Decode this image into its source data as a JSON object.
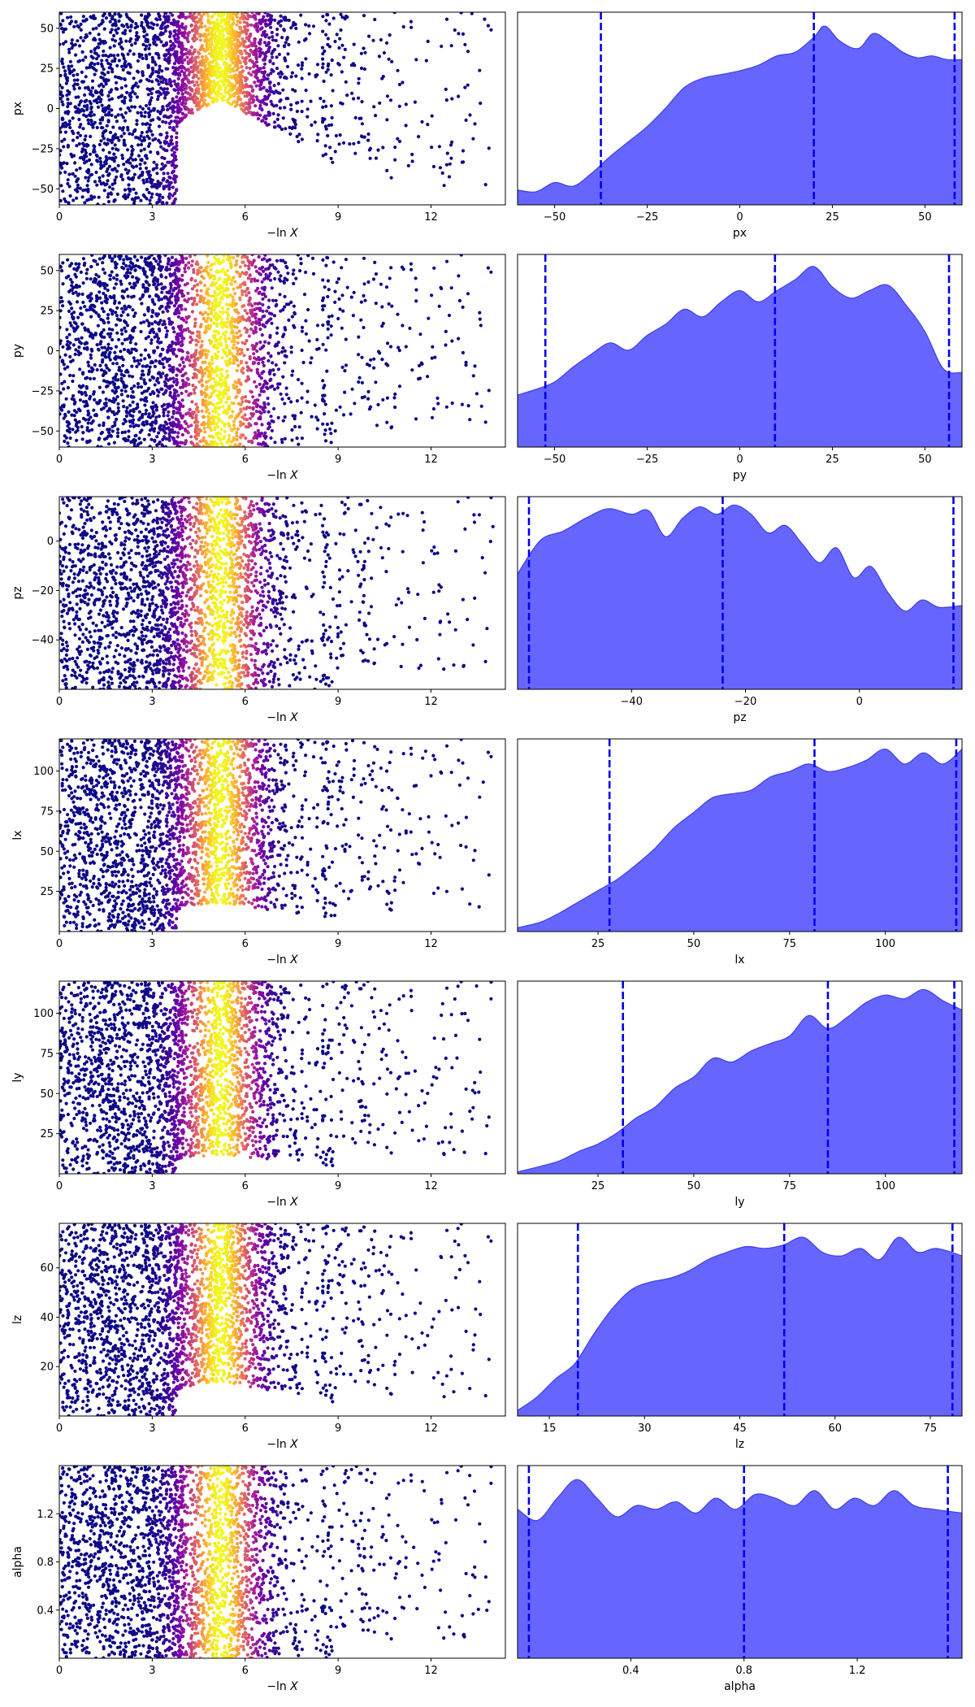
{
  "colors": {
    "kde_fill": "#6666ff",
    "kde_edge": "#3d3dea",
    "quantile_line": "#0000ee",
    "colormap": "plasma",
    "point_cold": "#0d0887"
  },
  "chart_data": [
    {
      "type": "scatter",
      "panel": "trace",
      "xlabel": "−ln X",
      "ylabel": "px",
      "xlim": [
        0,
        14.4
      ],
      "ylim": [
        -60,
        60
      ],
      "xticks": [
        0,
        3,
        6,
        9,
        12
      ],
      "xtick_labels": [
        "0",
        "3",
        "6",
        "9",
        "12"
      ],
      "yticks": [
        -50,
        -25,
        0,
        25,
        50
      ],
      "ytick_labels": [
        "−50",
        "−25",
        "0",
        "25",
        "50"
      ],
      "colormap": "plasma",
      "peak_x": 5.2,
      "n_points": 2800,
      "low_value_gap": 0.55
    },
    {
      "type": "area",
      "panel": "marginal",
      "xlabel": "px",
      "ylabel": "",
      "xlim": [
        -60,
        60
      ],
      "xticks": [
        -50,
        -25,
        0,
        25,
        50
      ],
      "xtick_labels": [
        "−50",
        "−25",
        "0",
        "25",
        "50"
      ],
      "x": [
        -60,
        -55,
        -50,
        -45,
        -40,
        -35,
        -30,
        -25,
        -20,
        -15,
        -10,
        -5,
        0,
        5,
        10,
        15,
        20,
        23,
        27,
        32,
        36,
        40,
        44,
        48,
        52,
        56,
        60
      ],
      "density": [
        0.08,
        0.07,
        0.12,
        0.1,
        0.17,
        0.26,
        0.34,
        0.42,
        0.52,
        0.63,
        0.68,
        0.7,
        0.72,
        0.75,
        0.8,
        0.82,
        0.9,
        0.96,
        0.88,
        0.84,
        0.92,
        0.88,
        0.82,
        0.79,
        0.8,
        0.78,
        0.78
      ],
      "quantiles": [
        -37.5,
        20,
        58
      ]
    },
    {
      "type": "scatter",
      "panel": "trace",
      "xlabel": "−ln X",
      "ylabel": "py",
      "xlim": [
        0,
        14.4
      ],
      "ylim": [
        -60,
        60
      ],
      "xticks": [
        0,
        3,
        6,
        9,
        12
      ],
      "xtick_labels": [
        "0",
        "3",
        "6",
        "9",
        "12"
      ],
      "yticks": [
        -50,
        -25,
        0,
        25,
        50
      ],
      "ytick_labels": [
        "−50",
        "−25",
        "0",
        "25",
        "50"
      ],
      "colormap": "plasma",
      "peak_x": 5.2,
      "n_points": 2800,
      "low_value_gap": 0.0
    },
    {
      "type": "area",
      "panel": "marginal",
      "xlabel": "py",
      "ylabel": "",
      "xlim": [
        -60,
        60
      ],
      "xticks": [
        -50,
        -25,
        0,
        25,
        50
      ],
      "xtick_labels": [
        "−50",
        "−25",
        "0",
        "25",
        "50"
      ],
      "x": [
        -60,
        -55,
        -50,
        -45,
        -40,
        -35,
        -30,
        -25,
        -20,
        -15,
        -10,
        -5,
        0,
        5,
        10,
        15,
        20,
        25,
        30,
        35,
        40,
        45,
        50,
        55,
        60
      ],
      "density": [
        0.28,
        0.31,
        0.35,
        0.43,
        0.5,
        0.56,
        0.52,
        0.6,
        0.66,
        0.74,
        0.7,
        0.78,
        0.84,
        0.78,
        0.84,
        0.9,
        0.97,
        0.86,
        0.8,
        0.84,
        0.87,
        0.76,
        0.62,
        0.42,
        0.4
      ],
      "quantiles": [
        -52.5,
        9.5,
        56.5
      ]
    },
    {
      "type": "scatter",
      "panel": "trace",
      "xlabel": "−ln X",
      "ylabel": "pz",
      "xlim": [
        0,
        14.4
      ],
      "ylim": [
        -60,
        18
      ],
      "xticks": [
        0,
        3,
        6,
        9,
        12
      ],
      "xtick_labels": [
        "0",
        "3",
        "6",
        "9",
        "12"
      ],
      "yticks": [
        -40,
        -20,
        0
      ],
      "ytick_labels": [
        "−40",
        "−20",
        "0"
      ],
      "colormap": "plasma",
      "peak_x": 5.2,
      "n_points": 2800,
      "low_value_gap": 0.0
    },
    {
      "type": "area",
      "panel": "marginal",
      "xlabel": "pz",
      "ylabel": "",
      "xlim": [
        -60,
        18
      ],
      "xticks": [
        -40,
        -20,
        0
      ],
      "xtick_labels": [
        "−40",
        "−20",
        "0"
      ],
      "x": [
        -60,
        -56,
        -52,
        -48,
        -44,
        -40,
        -37,
        -34,
        -31,
        -28,
        -25,
        -22,
        -19,
        -16,
        -13,
        -10,
        -7,
        -4,
        -1,
        2,
        5,
        8,
        11,
        14,
        18
      ],
      "density": [
        0.62,
        0.8,
        0.85,
        0.92,
        0.97,
        0.94,
        0.96,
        0.82,
        0.92,
        0.98,
        0.94,
        0.99,
        0.94,
        0.84,
        0.88,
        0.78,
        0.68,
        0.76,
        0.6,
        0.66,
        0.52,
        0.42,
        0.48,
        0.44,
        0.45
      ],
      "quantiles": [
        -58,
        -24,
        16.5
      ]
    },
    {
      "type": "scatter",
      "panel": "trace",
      "xlabel": "−ln X",
      "ylabel": "lx",
      "xlim": [
        0,
        14.4
      ],
      "ylim": [
        0,
        120
      ],
      "xticks": [
        0,
        3,
        6,
        9,
        12
      ],
      "xtick_labels": [
        "0",
        "3",
        "6",
        "9",
        "12"
      ],
      "yticks": [
        25,
        50,
        75,
        100
      ],
      "ytick_labels": [
        "25",
        "50",
        "75",
        "100"
      ],
      "colormap": "plasma",
      "peak_x": 5.2,
      "n_points": 2800,
      "low_value_gap": 0.15
    },
    {
      "type": "area",
      "panel": "marginal",
      "xlabel": "lx",
      "ylabel": "",
      "xlim": [
        4,
        120
      ],
      "xticks": [
        25,
        50,
        75,
        100
      ],
      "xtick_labels": [
        "25",
        "50",
        "75",
        "100"
      ],
      "x": [
        4,
        10,
        15,
        20,
        25,
        30,
        35,
        40,
        45,
        50,
        55,
        60,
        65,
        70,
        75,
        80,
        85,
        90,
        95,
        100,
        105,
        110,
        115,
        120
      ],
      "density": [
        0.02,
        0.05,
        0.1,
        0.16,
        0.22,
        0.28,
        0.36,
        0.45,
        0.56,
        0.64,
        0.72,
        0.74,
        0.76,
        0.83,
        0.86,
        0.9,
        0.86,
        0.88,
        0.92,
        0.98,
        0.9,
        0.96,
        0.9,
        0.98
      ],
      "quantiles": [
        28,
        81.5,
        118.5
      ]
    },
    {
      "type": "scatter",
      "panel": "trace",
      "xlabel": "−ln X",
      "ylabel": "ly",
      "xlim": [
        0,
        14.4
      ],
      "ylim": [
        0,
        120
      ],
      "xticks": [
        0,
        3,
        6,
        9,
        12
      ],
      "xtick_labels": [
        "0",
        "3",
        "6",
        "9",
        "12"
      ],
      "yticks": [
        25,
        50,
        75,
        100
      ],
      "ytick_labels": [
        "25",
        "50",
        "75",
        "100"
      ],
      "colormap": "plasma",
      "peak_x": 5.2,
      "n_points": 2800,
      "low_value_gap": 0.1
    },
    {
      "type": "area",
      "panel": "marginal",
      "xlabel": "ly",
      "ylabel": "",
      "xlim": [
        4,
        120
      ],
      "xticks": [
        25,
        50,
        75,
        100
      ],
      "xtick_labels": [
        "25",
        "50",
        "75",
        "100"
      ],
      "x": [
        4,
        10,
        15,
        20,
        25,
        30,
        35,
        40,
        45,
        50,
        55,
        60,
        65,
        70,
        75,
        80,
        85,
        90,
        95,
        100,
        105,
        110,
        115,
        120
      ],
      "density": [
        0.01,
        0.04,
        0.07,
        0.12,
        0.16,
        0.22,
        0.3,
        0.36,
        0.46,
        0.52,
        0.62,
        0.6,
        0.66,
        0.7,
        0.74,
        0.85,
        0.78,
        0.84,
        0.92,
        0.96,
        0.94,
        0.99,
        0.93,
        0.88
      ],
      "quantiles": [
        31.5,
        85,
        118
      ]
    },
    {
      "type": "scatter",
      "panel": "trace",
      "xlabel": "−ln X",
      "ylabel": "lz",
      "xlim": [
        0,
        14.4
      ],
      "ylim": [
        0,
        78
      ],
      "xticks": [
        0,
        3,
        6,
        9,
        12
      ],
      "xtick_labels": [
        "0",
        "3",
        "6",
        "9",
        "12"
      ],
      "yticks": [
        20,
        40,
        60
      ],
      "ytick_labels": [
        "20",
        "40",
        "60"
      ],
      "colormap": "plasma",
      "peak_x": 5.2,
      "n_points": 2800,
      "low_value_gap": 0.18
    },
    {
      "type": "area",
      "panel": "marginal",
      "xlabel": "lz",
      "ylabel": "",
      "xlim": [
        10,
        80
      ],
      "xticks": [
        15,
        30,
        45,
        60,
        75
      ],
      "xtick_labels": [
        "15",
        "30",
        "45",
        "60",
        "75"
      ],
      "x": [
        10,
        13,
        16,
        19,
        22,
        25,
        28,
        31,
        34,
        37,
        40,
        43,
        46,
        49,
        52,
        55,
        58,
        61,
        64,
        67,
        70,
        73,
        76,
        80
      ],
      "density": [
        0.03,
        0.1,
        0.2,
        0.28,
        0.44,
        0.58,
        0.68,
        0.72,
        0.74,
        0.78,
        0.84,
        0.88,
        0.91,
        0.9,
        0.92,
        0.96,
        0.88,
        0.86,
        0.9,
        0.84,
        0.96,
        0.88,
        0.9,
        0.86
      ],
      "quantiles": [
        19.5,
        52,
        78.5
      ]
    },
    {
      "type": "scatter",
      "panel": "trace",
      "xlabel": "−ln X",
      "ylabel": "alpha",
      "xlim": [
        0,
        14.4
      ],
      "ylim": [
        0,
        1.6
      ],
      "xticks": [
        0,
        3,
        6,
        9,
        12
      ],
      "xtick_labels": [
        "0",
        "3",
        "6",
        "9",
        "12"
      ],
      "yticks": [
        0.4,
        0.8,
        1.2
      ],
      "ytick_labels": [
        "0.4",
        "0.8",
        "1.2"
      ],
      "colormap": "plasma",
      "peak_x": 5.2,
      "n_points": 2800,
      "low_value_gap": 0.0
    },
    {
      "type": "area",
      "panel": "marginal",
      "xlabel": "alpha",
      "ylabel": "",
      "xlim": [
        0,
        1.57
      ],
      "xticks": [
        0.4,
        0.8,
        1.2
      ],
      "xtick_labels": [
        "0.4",
        "0.8",
        "1.2"
      ],
      "x": [
        0,
        0.07,
        0.14,
        0.21,
        0.28,
        0.35,
        0.42,
        0.49,
        0.56,
        0.63,
        0.7,
        0.77,
        0.84,
        0.91,
        0.98,
        1.05,
        1.12,
        1.19,
        1.26,
        1.33,
        1.4,
        1.47,
        1.57
      ],
      "density": [
        0.8,
        0.74,
        0.86,
        0.96,
        0.86,
        0.76,
        0.82,
        0.8,
        0.84,
        0.78,
        0.86,
        0.8,
        0.88,
        0.86,
        0.82,
        0.9,
        0.8,
        0.86,
        0.82,
        0.9,
        0.82,
        0.8,
        0.78
      ],
      "quantiles": [
        0.04,
        0.8,
        1.52
      ]
    }
  ]
}
